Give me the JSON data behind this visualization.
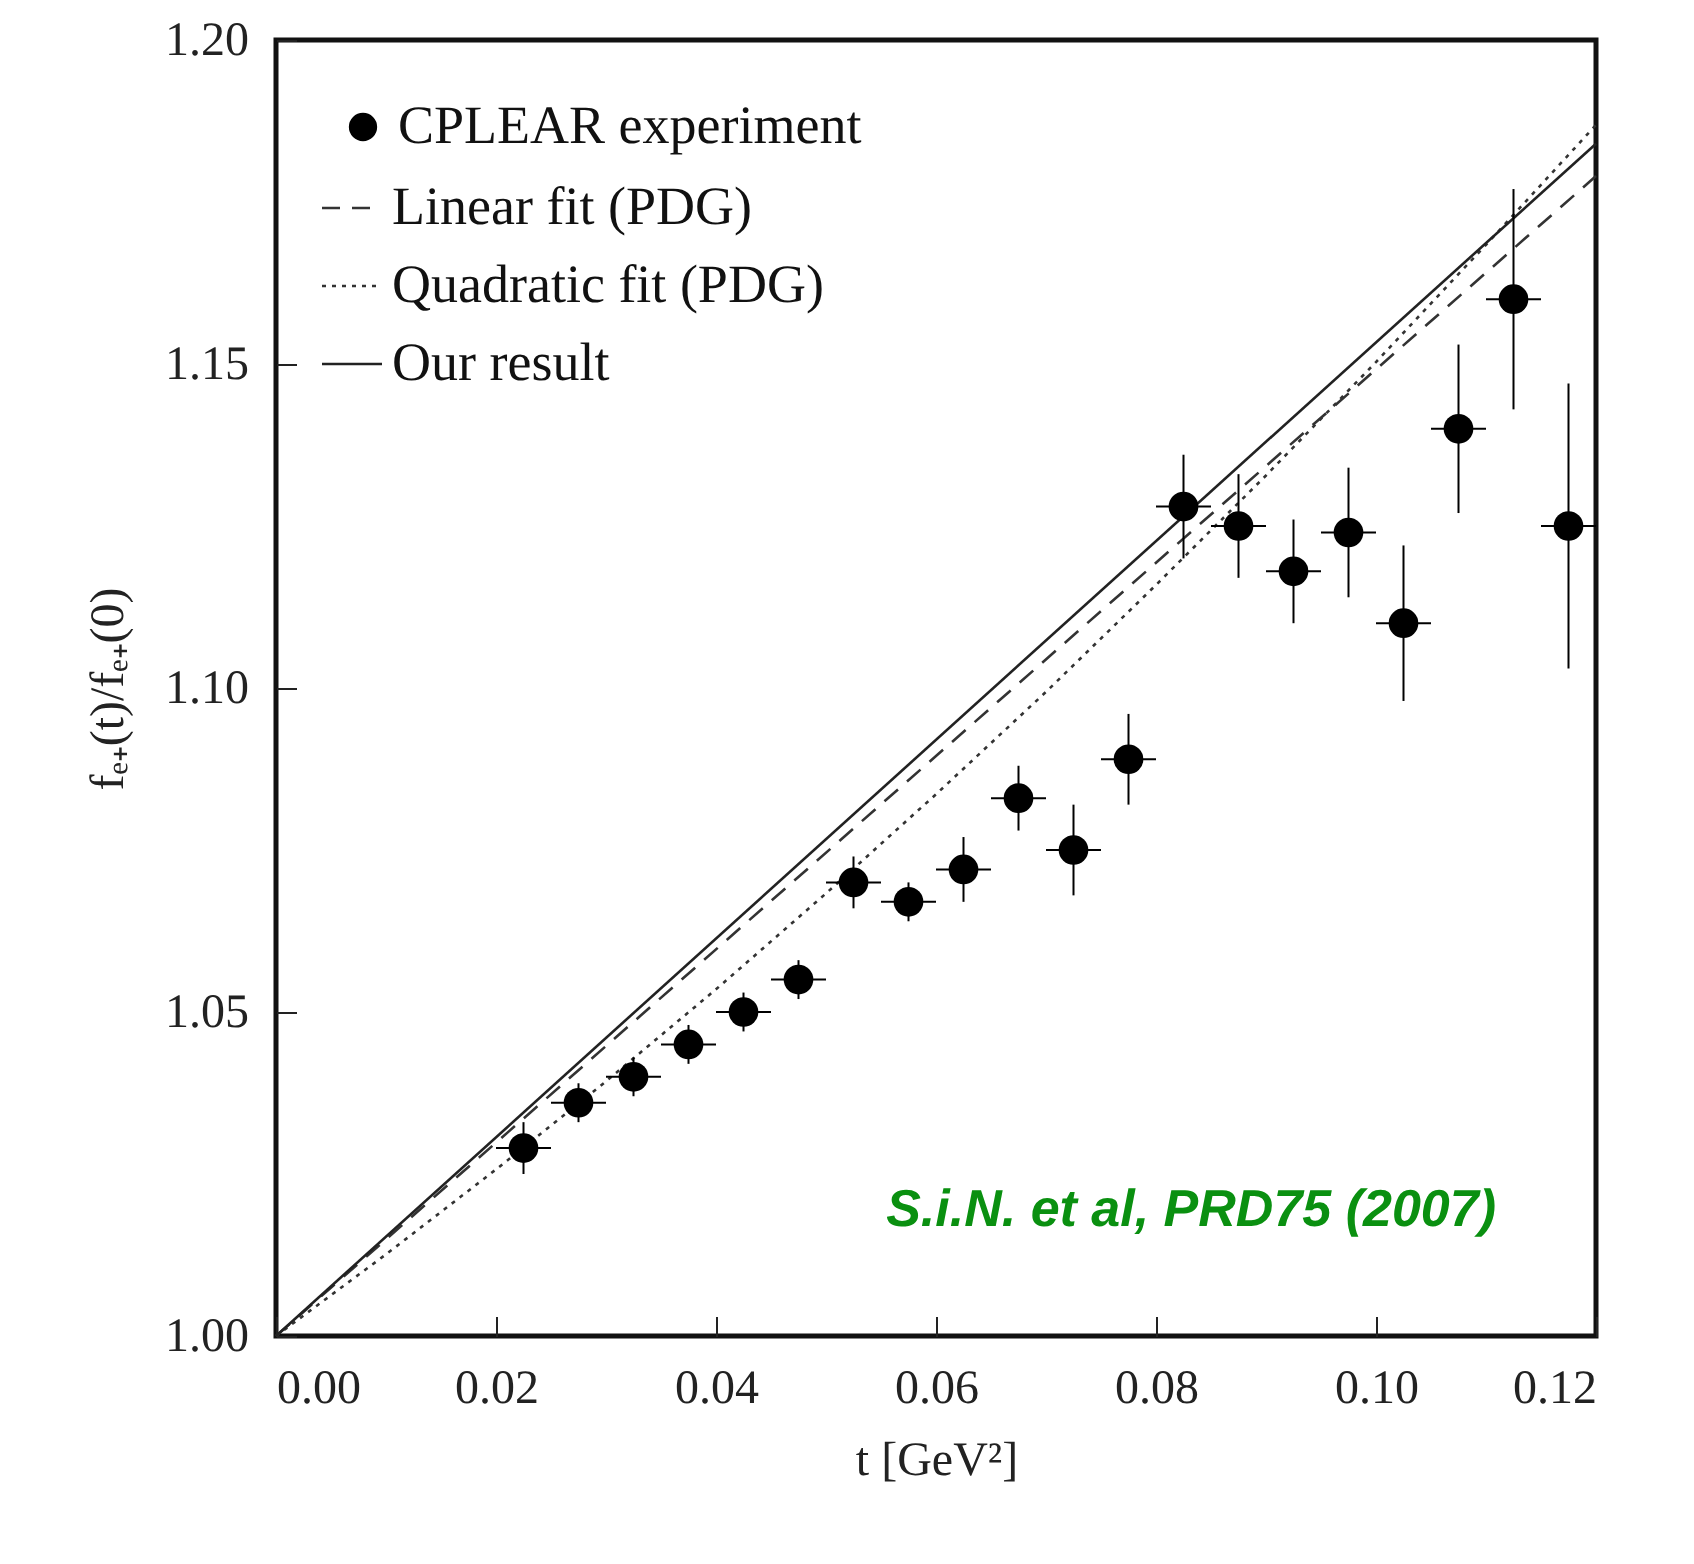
{
  "chart_data": {
    "type": "scatter",
    "xlabel": "t [GeV²]",
    "ylabel": "fₑ₊(t)/fₑ₊(0)",
    "xlim": [
      0,
      0.12
    ],
    "xticks": [
      {
        "value": 0,
        "label": "0.00"
      },
      {
        "value": 0.02,
        "label": "0.02"
      },
      {
        "value": 0.04,
        "label": "0.04"
      },
      {
        "value": 0.06,
        "label": "0.06"
      },
      {
        "value": 0.08,
        "label": "0.08"
      },
      {
        "value": 0.1,
        "label": "0.10"
      },
      {
        "value": 0.12,
        "label": "0.12"
      }
    ],
    "ylim": [
      1,
      1.2
    ],
    "yticks": [
      {
        "value": 1,
        "label": "1.00"
      },
      {
        "value": 1.05,
        "label": "1.05"
      },
      {
        "value": 1.1,
        "label": "1.10"
      },
      {
        "value": 1.15,
        "label": "1.15"
      },
      {
        "value": 1.2,
        "label": "1.20"
      }
    ],
    "legend": "top left",
    "grid": false,
    "annotations": [
      "S.i.N. et al, PRD75 (2007)"
    ],
    "series": [
      {
        "name": "CPLEAR experiment",
        "marker": "circle",
        "color": "#000000",
        "x": [
          0.0225,
          0.0275,
          0.0325,
          0.0375,
          0.0425,
          0.0475,
          0.0525,
          0.0575,
          0.0625,
          0.0675,
          0.0725,
          0.0775,
          0.0825,
          0.0875,
          0.0925,
          0.0975,
          0.1025,
          0.1075,
          0.1125,
          0.1175
        ],
        "values": [
          1.029,
          1.036,
          1.04,
          1.045,
          1.05,
          1.055,
          1.07,
          1.067,
          1.072,
          1.083,
          1.075,
          1.089,
          1.128,
          1.125,
          1.118,
          1.124,
          1.11,
          1.14,
          1.16,
          1.125
        ],
        "errors": [
          0.004,
          0.003,
          0.003,
          0.003,
          0.003,
          0.003,
          0.004,
          0.003,
          0.005,
          0.005,
          0.007,
          0.007,
          0.008,
          0.008,
          0.008,
          0.01,
          0.012,
          0.013,
          0.017,
          0.022
        ],
        "xerrors": [
          0.0025,
          0.0025,
          0.0025,
          0.0025,
          0.0025,
          0.0025,
          0.0025,
          0.0025,
          0.0025,
          0.0025,
          0.0025,
          0.0025,
          0.0025,
          0.0025,
          0.0025,
          0.0025,
          0.0025,
          0.0025,
          0.0025,
          0.0025
        ]
      },
      {
        "name": "Linear fit (PDG)",
        "type": "line",
        "line_style": "dashed",
        "color": "#333333",
        "x": [
          0,
          0.12
        ],
        "values": [
          1,
          1.179
        ]
      },
      {
        "name": "Quadratic fit (PDG)",
        "type": "line",
        "line_style": "dotted",
        "color": "#333333",
        "x": [
          0,
          0.01,
          0.02,
          0.03,
          0.04,
          0.05,
          0.06,
          0.07,
          0.08,
          0.09,
          0.1,
          0.11,
          0.12
        ],
        "values": [
          1,
          1.0126,
          1.0257,
          1.0393,
          1.0535,
          1.0683,
          1.0836,
          1.0994,
          1.1159,
          1.1328,
          1.1503,
          1.1684,
          1.1869
        ]
      },
      {
        "name": "Our result",
        "type": "line",
        "line_style": "solid",
        "color": "#222222",
        "x": [
          0,
          0.12
        ],
        "values": [
          1,
          1.184
        ]
      }
    ]
  }
}
